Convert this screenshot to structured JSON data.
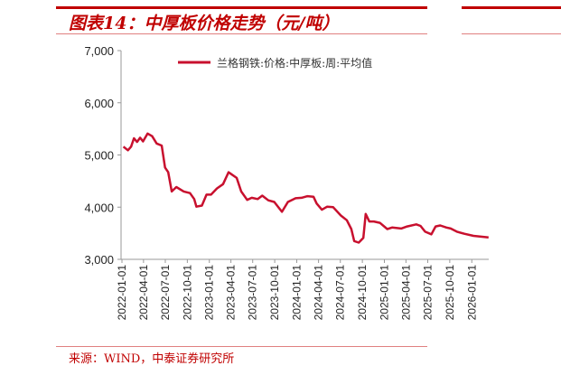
{
  "title": "图表14：中厚板价格走势（元/吨）",
  "source": "来源：WIND，中泰证券研究所",
  "colors": {
    "accent": "#c00000",
    "series": "#c8102e"
  },
  "chart_data": {
    "type": "line",
    "title": "",
    "xlabel": "",
    "ylabel": "",
    "ylim": [
      3000,
      7000
    ],
    "yticks": [
      "3,000",
      "4,000",
      "5,000",
      "6,000",
      "7,000"
    ],
    "xticks": [
      "2022-01-01",
      "2022-04-01",
      "2022-07-01",
      "2022-10-01",
      "2023-01-01",
      "2023-04-01",
      "2023-07-01",
      "2023-10-01",
      "2024-01-01",
      "2024-04-01",
      "2024-07-01",
      "2024-10-01",
      "2025-01-01",
      "2025-04-01",
      "2025-07-01",
      "2025-10-01",
      "2026-01-01"
    ],
    "grid": false,
    "legend_position": "top-center",
    "series": [
      {
        "name": "兰格钢铁:价格:中厚板:周:平均值",
        "points": [
          [
            "2022-01-07",
            5160
          ],
          [
            "2022-01-26",
            5090
          ],
          [
            "2022-02-08",
            5160
          ],
          [
            "2022-02-20",
            5320
          ],
          [
            "2022-03-05",
            5250
          ],
          [
            "2022-03-18",
            5330
          ],
          [
            "2022-03-30",
            5260
          ],
          [
            "2022-04-18",
            5410
          ],
          [
            "2022-05-07",
            5360
          ],
          [
            "2022-05-26",
            5220
          ],
          [
            "2022-06-16",
            5180
          ],
          [
            "2022-06-30",
            4760
          ],
          [
            "2022-07-13",
            4670
          ],
          [
            "2022-07-28",
            4300
          ],
          [
            "2022-08-16",
            4385
          ],
          [
            "2022-09-16",
            4300
          ],
          [
            "2022-10-12",
            4270
          ],
          [
            "2022-10-30",
            4155
          ],
          [
            "2022-11-08",
            4010
          ],
          [
            "2022-12-01",
            4030
          ],
          [
            "2022-12-20",
            4240
          ],
          [
            "2023-01-08",
            4240
          ],
          [
            "2023-02-02",
            4360
          ],
          [
            "2023-02-27",
            4440
          ],
          [
            "2023-03-22",
            4670
          ],
          [
            "2023-04-25",
            4560
          ],
          [
            "2023-05-14",
            4300
          ],
          [
            "2023-06-08",
            4140
          ],
          [
            "2023-06-27",
            4180
          ],
          [
            "2023-07-22",
            4155
          ],
          [
            "2023-08-10",
            4220
          ],
          [
            "2023-09-04",
            4130
          ],
          [
            "2023-09-29",
            4100
          ],
          [
            "2023-10-31",
            3910
          ],
          [
            "2023-11-25",
            4100
          ],
          [
            "2023-12-27",
            4170
          ],
          [
            "2024-01-21",
            4180
          ],
          [
            "2024-02-15",
            4210
          ],
          [
            "2024-03-11",
            4200
          ],
          [
            "2024-03-24",
            4070
          ],
          [
            "2024-04-15",
            3950
          ],
          [
            "2024-05-07",
            4010
          ],
          [
            "2024-06-01",
            4000
          ],
          [
            "2024-07-03",
            3840
          ],
          [
            "2024-07-28",
            3750
          ],
          [
            "2024-08-16",
            3580
          ],
          [
            "2024-08-28",
            3350
          ],
          [
            "2024-09-16",
            3320
          ],
          [
            "2024-10-05",
            3410
          ],
          [
            "2024-10-15",
            3870
          ],
          [
            "2024-10-30",
            3725
          ],
          [
            "2024-11-18",
            3725
          ],
          [
            "2024-12-13",
            3700
          ],
          [
            "2025-01-13",
            3580
          ],
          [
            "2025-02-02",
            3610
          ],
          [
            "2025-03-12",
            3590
          ],
          [
            "2025-04-06",
            3630
          ],
          [
            "2025-05-14",
            3670
          ],
          [
            "2025-06-01",
            3640
          ],
          [
            "2025-06-20",
            3530
          ],
          [
            "2025-07-16",
            3480
          ],
          [
            "2025-08-03",
            3630
          ],
          [
            "2025-08-22",
            3650
          ],
          [
            "2025-09-17",
            3610
          ],
          [
            "2025-10-05",
            3590
          ],
          [
            "2025-10-31",
            3530
          ],
          [
            "2025-12-01",
            3490
          ],
          [
            "2026-01-08",
            3450
          ],
          [
            "2026-03-12",
            3420
          ]
        ]
      }
    ]
  }
}
